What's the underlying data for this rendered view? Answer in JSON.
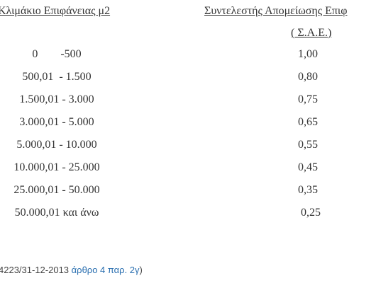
{
  "table": {
    "header": [
      "Κλιμάκιο Επιφάνειας μ2",
      "Συντελεστής Απομείωσης Επιφ"
    ],
    "subheader": "( Σ.Α.Ε.)",
    "rows": [
      [
        "0        -500",
        "1,00"
      ],
      [
        "500,01  - 1.500",
        "0,80"
      ],
      [
        "1.500,01 - 3.000",
        "0,75"
      ],
      [
        "3.000,01 - 5.000",
        "0,65"
      ],
      [
        "5.000,01 - 10.000",
        "0,55"
      ],
      [
        "10.000,01 - 25.000",
        "0,45"
      ],
      [
        "25.000,01 - 50.000",
        "0,35"
      ],
      [
        "50.000,01 και άνω",
        "0,25"
      ]
    ]
  },
  "footer": {
    "text": "4223/31-12-2013 ",
    "link": "άρθρο 4 παρ. 2γ",
    "close": ")"
  }
}
